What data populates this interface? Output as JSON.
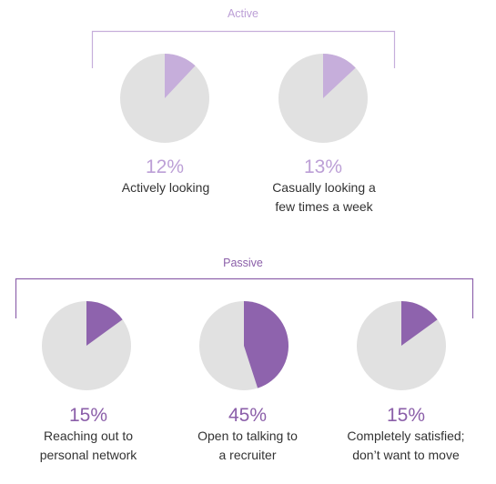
{
  "colors": {
    "pie_bg": "#e1e1e1",
    "active_slice": "#c6aedb",
    "active_text": "#bc9fd6",
    "passive_slice": "#8e63ad",
    "passive_text": "#8b5fa9",
    "caption_text": "#333333"
  },
  "chart_data": [
    {
      "type": "pie",
      "group": "Active",
      "slices": [
        {
          "label": "Actively looking",
          "value": 12
        },
        {
          "label": "Remainder",
          "value": 88
        }
      ],
      "percent_text": "12%",
      "caption": [
        "Actively looking"
      ]
    },
    {
      "type": "pie",
      "group": "Active",
      "slices": [
        {
          "label": "Casually looking a few times a week",
          "value": 13
        },
        {
          "label": "Remainder",
          "value": 87
        }
      ],
      "percent_text": "13%",
      "caption": [
        "Casually looking a",
        "few times a week"
      ]
    },
    {
      "type": "pie",
      "group": "Passive",
      "slices": [
        {
          "label": "Reaching out to personal network",
          "value": 15
        },
        {
          "label": "Remainder",
          "value": 85
        }
      ],
      "percent_text": "15%",
      "caption": [
        "Reaching out to",
        "personal network"
      ]
    },
    {
      "type": "pie",
      "group": "Passive",
      "slices": [
        {
          "label": "Open to talking to a recruiter",
          "value": 45
        },
        {
          "label": "Remainder",
          "value": 55
        }
      ],
      "percent_text": "45%",
      "caption": [
        "Open to talking to",
        "a recruiter"
      ]
    },
    {
      "type": "pie",
      "group": "Passive",
      "slices": [
        {
          "label": "Completely satisfied; don't want to move",
          "value": 15
        },
        {
          "label": "Remainder",
          "value": 85
        }
      ],
      "percent_text": "15%",
      "caption": [
        "Completely satisfied;",
        "don’t want to move"
      ]
    }
  ],
  "groups": {
    "active": {
      "label": "Active"
    },
    "passive": {
      "label": "Passive"
    }
  }
}
